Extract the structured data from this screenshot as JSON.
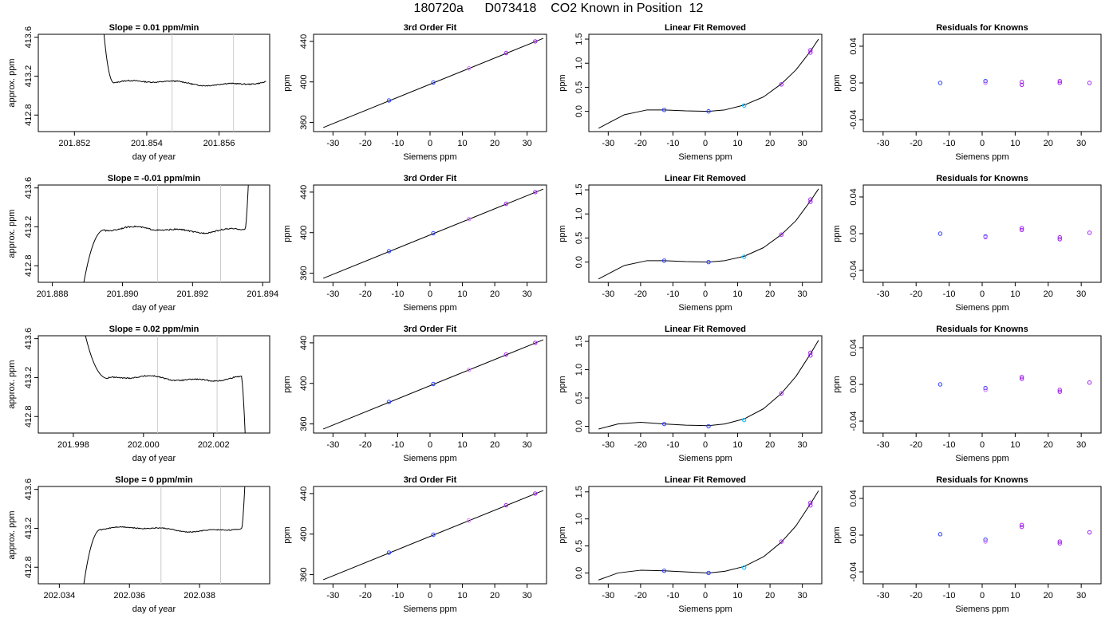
{
  "page": {
    "title": "180720a      D073418    CO2 Known in Position  12"
  },
  "colors": {
    "axis": "#000000",
    "marker": "#cccccc",
    "point_blue": "#2a3cff",
    "point_purple": "#a020f0",
    "point_cyan": "#00b7ff",
    "point_magenta": "#d77aff",
    "line": "#000000"
  },
  "chart_data": [
    {
      "row": 1,
      "type": "line",
      "title": "Slope =  0.01  ppm/min",
      "xlabel": "day of year",
      "ylabel": "approx. ppm",
      "xlim": [
        201.851,
        201.8574
      ],
      "ylim": [
        412.63,
        413.63
      ],
      "xticks": [
        201.852,
        201.854,
        201.856
      ],
      "xtick_labels": [
        "201.852",
        "201.854",
        "201.856"
      ],
      "yticks": [
        412.8,
        413.2,
        413.6
      ],
      "ytick_labels": [
        "412.8",
        "413.2",
        "413.6"
      ],
      "markers": [
        201.8547,
        201.8564
      ],
      "trace": {
        "start": 201.8528,
        "end": 201.8573,
        "plateau": 413.13,
        "rise_end": 201.8531,
        "drop_start": 201.8573,
        "drop_to": 412.63,
        "rise_from": 413.7,
        "wave_amp": 0.012
      }
    },
    {
      "row": 1,
      "type": "line_scatter",
      "title": "3rd Order Fit",
      "xlabel": "Siemens ppm",
      "ylabel": "ppm",
      "xlim": [
        -36,
        36
      ],
      "ylim": [
        351,
        447
      ],
      "xticks": [
        -30,
        -20,
        -10,
        0,
        10,
        20,
        30
      ],
      "xtick_labels": [
        "-30",
        "-20",
        "-10",
        "0",
        "10",
        "20",
        "30"
      ],
      "yticks": [
        360,
        400,
        440
      ],
      "ytick_labels": [
        "360",
        "400",
        "440"
      ],
      "line": {
        "x": [
          -33,
          35
        ],
        "y": [
          355,
          443
        ]
      },
      "points": [
        {
          "x": -12.7,
          "y": 381.7
        },
        {
          "x": 1.0,
          "y": 399.4
        },
        {
          "x": 12.0,
          "y": 413.4
        },
        {
          "x": 23.5,
          "y": 428.5
        },
        {
          "x": 32.5,
          "y": 440.0
        }
      ]
    },
    {
      "row": 1,
      "type": "line_scatter",
      "title": "Linear Fit Removed",
      "xlabel": "Siemens ppm",
      "ylabel": "ppm",
      "xlim": [
        -36,
        36
      ],
      "ylim": [
        -0.42,
        1.6
      ],
      "xticks": [
        -30,
        -20,
        -10,
        0,
        10,
        20,
        30
      ],
      "xtick_labels": [
        "-30",
        "-20",
        "-10",
        "0",
        "10",
        "20",
        "30"
      ],
      "yticks": [
        0.0,
        0.5,
        1.0,
        1.5
      ],
      "ytick_labels": [
        "0.0",
        "0.5",
        "1.0",
        "1.5"
      ],
      "curve": {
        "x": [
          -33,
          -25,
          -18,
          -12.7,
          -6,
          1,
          6,
          12,
          18,
          23.5,
          28,
          32.5,
          35
        ],
        "y": [
          -0.35,
          -0.07,
          0.03,
          0.03,
          0.01,
          0.0,
          0.03,
          0.13,
          0.3,
          0.57,
          0.86,
          1.25,
          1.5
        ]
      },
      "points": [
        {
          "x": -12.7,
          "y": 0.03
        },
        {
          "x": 1.0,
          "y": 0.0
        },
        {
          "x": 12.0,
          "y": 0.12
        },
        {
          "x": 23.5,
          "y": 0.56
        },
        {
          "x": 32.5,
          "y": 1.22
        },
        {
          "x": 32.5,
          "y": 1.27
        }
      ]
    },
    {
      "row": 1,
      "type": "scatter",
      "title": "Residuals for Knowns",
      "xlabel": "Siemens ppm",
      "ylabel": "ppm",
      "xlim": [
        -36,
        36
      ],
      "ylim": [
        -0.053,
        0.053
      ],
      "xticks": [
        -30,
        -20,
        -10,
        0,
        10,
        20,
        30
      ],
      "xtick_labels": [
        "-30",
        "-20",
        "-10",
        "0",
        "10",
        "20",
        "30"
      ],
      "yticks": [
        -0.04,
        0.0,
        0.04
      ],
      "ytick_labels": [
        "-0.04",
        "0.00",
        "0.04"
      ],
      "points": [
        {
          "x": -12.7,
          "y": 0.0
        },
        {
          "x": 1.0,
          "y": 0.002
        },
        {
          "x": 1.0,
          "y": 0.0
        },
        {
          "x": 12.0,
          "y": 0.001
        },
        {
          "x": 12.0,
          "y": -0.002
        },
        {
          "x": 23.5,
          "y": 0.002
        },
        {
          "x": 23.5,
          "y": 0.0
        },
        {
          "x": 32.5,
          "y": 0.0
        }
      ]
    },
    {
      "row": 2,
      "type": "line",
      "title": "Slope =  -0.01  ppm/min",
      "xlabel": "day of year",
      "ylabel": "approx. ppm",
      "xlim": [
        201.8876,
        201.8942
      ],
      "ylim": [
        412.63,
        413.63
      ],
      "xticks": [
        201.888,
        201.89,
        201.892,
        201.894
      ],
      "xtick_labels": [
        "201.888",
        "201.890",
        "201.892",
        "201.894"
      ],
      "yticks": [
        412.8,
        413.2,
        413.6
      ],
      "ytick_labels": [
        "412.8",
        "413.2",
        "413.6"
      ],
      "markers": [
        201.891,
        201.8928
      ],
      "trace": {
        "start": 201.8889,
        "end": 201.8936,
        "plateau": 413.17,
        "rise_end": 201.8895,
        "drop_start": 201.8935,
        "drop_to": 413.7,
        "rise_from": 412.63,
        "wave_amp": 0.014
      }
    },
    {
      "row": 2,
      "type": "line_scatter",
      "title": "3rd Order Fit",
      "xlabel": "Siemens ppm",
      "ylabel": "ppm",
      "xlim": [
        -36,
        36
      ],
      "ylim": [
        351,
        447
      ],
      "xticks": [
        -30,
        -20,
        -10,
        0,
        10,
        20,
        30
      ],
      "xtick_labels": [
        "-30",
        "-20",
        "-10",
        "0",
        "10",
        "20",
        "30"
      ],
      "yticks": [
        360,
        400,
        440
      ],
      "ytick_labels": [
        "360",
        "400",
        "440"
      ],
      "line": {
        "x": [
          -33,
          35
        ],
        "y": [
          355,
          443
        ]
      },
      "points": [
        {
          "x": -12.7,
          "y": 381.7
        },
        {
          "x": 1.0,
          "y": 399.4
        },
        {
          "x": 12.0,
          "y": 413.4
        },
        {
          "x": 23.5,
          "y": 428.5
        },
        {
          "x": 32.5,
          "y": 440.0
        }
      ]
    },
    {
      "row": 2,
      "type": "line_scatter",
      "title": "Linear Fit Removed",
      "xlabel": "Siemens ppm",
      "ylabel": "ppm",
      "xlim": [
        -36,
        36
      ],
      "ylim": [
        -0.42,
        1.6
      ],
      "xticks": [
        -30,
        -20,
        -10,
        0,
        10,
        20,
        30
      ],
      "xtick_labels": [
        "-30",
        "-20",
        "-10",
        "0",
        "10",
        "20",
        "30"
      ],
      "yticks": [
        0.0,
        0.5,
        1.0,
        1.5
      ],
      "ytick_labels": [
        "0.0",
        "0.5",
        "1.0",
        "1.5"
      ],
      "curve": {
        "x": [
          -33,
          -25,
          -18,
          -12.7,
          -6,
          1,
          6,
          12,
          18,
          23.5,
          28,
          32.5,
          35
        ],
        "y": [
          -0.35,
          -0.07,
          0.03,
          0.03,
          0.01,
          0.0,
          0.03,
          0.12,
          0.3,
          0.57,
          0.86,
          1.27,
          1.52
        ]
      },
      "points": [
        {
          "x": -12.7,
          "y": 0.03
        },
        {
          "x": 1.0,
          "y": 0.0
        },
        {
          "x": 12.0,
          "y": 0.11
        },
        {
          "x": 23.5,
          "y": 0.57
        },
        {
          "x": 32.5,
          "y": 1.25
        },
        {
          "x": 32.5,
          "y": 1.3
        }
      ]
    },
    {
      "row": 2,
      "type": "scatter",
      "title": "Residuals for Knowns",
      "xlabel": "Siemens ppm",
      "ylabel": "ppm",
      "xlim": [
        -36,
        36
      ],
      "ylim": [
        -0.053,
        0.053
      ],
      "xticks": [
        -30,
        -20,
        -10,
        0,
        10,
        20,
        30
      ],
      "xtick_labels": [
        "-30",
        "-20",
        "-10",
        "0",
        "10",
        "20",
        "30"
      ],
      "yticks": [
        -0.04,
        0.0,
        0.04
      ],
      "ytick_labels": [
        "-0.04",
        "0.00",
        "0.04"
      ],
      "points": [
        {
          "x": -12.7,
          "y": 0.0
        },
        {
          "x": 1.0,
          "y": -0.003
        },
        {
          "x": 1.0,
          "y": -0.004
        },
        {
          "x": 12.0,
          "y": 0.006
        },
        {
          "x": 12.0,
          "y": 0.004
        },
        {
          "x": 23.5,
          "y": -0.004
        },
        {
          "x": 23.5,
          "y": -0.006
        },
        {
          "x": 32.5,
          "y": 0.001
        }
      ]
    },
    {
      "row": 3,
      "type": "line",
      "title": "Slope =  0.02  ppm/min",
      "xlabel": "day of year",
      "ylabel": "approx. ppm",
      "xlim": [
        201.997,
        202.0036
      ],
      "ylim": [
        412.63,
        413.63
      ],
      "xticks": [
        201.998,
        202.0,
        202.002
      ],
      "xtick_labels": [
        "201.998",
        "202.000",
        "202.002"
      ],
      "yticks": [
        412.8,
        413.2,
        413.6
      ],
      "ytick_labels": [
        "412.8",
        "413.2",
        "413.6"
      ],
      "markers": [
        202.0004,
        202.0021
      ],
      "trace": {
        "start": 201.9983,
        "end": 202.0029,
        "plateau": 413.19,
        "rise_end": 201.999,
        "drop_start": 202.0028,
        "drop_to": 412.63,
        "rise_from": 413.7,
        "wave_amp": 0.013
      }
    },
    {
      "row": 3,
      "type": "line_scatter",
      "title": "3rd Order Fit",
      "xlabel": "Siemens ppm",
      "ylabel": "ppm",
      "xlim": [
        -36,
        36
      ],
      "ylim": [
        351,
        447
      ],
      "xticks": [
        -30,
        -20,
        -10,
        0,
        10,
        20,
        30
      ],
      "xtick_labels": [
        "-30",
        "-20",
        "-10",
        "0",
        "10",
        "20",
        "30"
      ],
      "yticks": [
        360,
        400,
        440
      ],
      "ytick_labels": [
        "360",
        "400",
        "440"
      ],
      "line": {
        "x": [
          -33,
          35
        ],
        "y": [
          355,
          443
        ]
      },
      "points": [
        {
          "x": -12.7,
          "y": 381.7
        },
        {
          "x": 1.0,
          "y": 399.4
        },
        {
          "x": 12.0,
          "y": 413.4
        },
        {
          "x": 23.5,
          "y": 428.5
        },
        {
          "x": 32.5,
          "y": 440.0
        }
      ]
    },
    {
      "row": 3,
      "type": "line_scatter",
      "title": "Linear Fit Removed",
      "xlabel": "Siemens ppm",
      "ylabel": "ppm",
      "xlim": [
        -36,
        36
      ],
      "ylim": [
        -0.12,
        1.6
      ],
      "xticks": [
        -30,
        -20,
        -10,
        0,
        10,
        20,
        30
      ],
      "xtick_labels": [
        "-30",
        "-20",
        "-10",
        "0",
        "10",
        "20",
        "30"
      ],
      "yticks": [
        0.0,
        0.5,
        1.0,
        1.5
      ],
      "ytick_labels": [
        "0.0",
        "0.5",
        "1.0",
        "1.5"
      ],
      "curve": {
        "x": [
          -33,
          -27,
          -20,
          -12.7,
          -6,
          1,
          6,
          12,
          18,
          23.5,
          28,
          32.5,
          35
        ],
        "y": [
          -0.05,
          0.04,
          0.07,
          0.04,
          0.02,
          0.01,
          0.04,
          0.13,
          0.31,
          0.58,
          0.88,
          1.28,
          1.52
        ]
      },
      "points": [
        {
          "x": -12.7,
          "y": 0.04
        },
        {
          "x": 1.0,
          "y": 0.0
        },
        {
          "x": 12.0,
          "y": 0.11
        },
        {
          "x": 23.5,
          "y": 0.58
        },
        {
          "x": 32.5,
          "y": 1.25
        },
        {
          "x": 32.5,
          "y": 1.3
        }
      ]
    },
    {
      "row": 3,
      "type": "scatter",
      "title": "Residuals for Knowns",
      "xlabel": "Siemens ppm",
      "ylabel": "ppm",
      "xlim": [
        -36,
        36
      ],
      "ylim": [
        -0.053,
        0.053
      ],
      "xticks": [
        -30,
        -20,
        -10,
        0,
        10,
        20,
        30
      ],
      "xtick_labels": [
        "-30",
        "-20",
        "-10",
        "0",
        "10",
        "20",
        "30"
      ],
      "yticks": [
        -0.04,
        0.0,
        0.04
      ],
      "ytick_labels": [
        "-0.04",
        "0.00",
        "0.04"
      ],
      "points": [
        {
          "x": -12.7,
          "y": 0.0
        },
        {
          "x": 1.0,
          "y": -0.004
        },
        {
          "x": 1.0,
          "y": -0.006
        },
        {
          "x": 12.0,
          "y": 0.008
        },
        {
          "x": 12.0,
          "y": 0.006
        },
        {
          "x": 23.5,
          "y": -0.006
        },
        {
          "x": 23.5,
          "y": -0.008
        },
        {
          "x": 32.5,
          "y": 0.002
        }
      ]
    },
    {
      "row": 4,
      "type": "line",
      "title": "Slope =  0  ppm/min",
      "xlabel": "day of year",
      "ylabel": "approx. ppm",
      "xlim": [
        202.0334,
        202.04
      ],
      "ylim": [
        412.63,
        413.63
      ],
      "xticks": [
        202.034,
        202.036,
        202.038
      ],
      "xtick_labels": [
        "202.034",
        "202.036",
        "202.038"
      ],
      "yticks": [
        412.8,
        413.2,
        413.6
      ],
      "ytick_labels": [
        "412.8",
        "413.2",
        "413.6"
      ],
      "markers": [
        202.0369,
        202.0386
      ],
      "trace": {
        "start": 202.0347,
        "end": 202.0393,
        "plateau": 413.19,
        "rise_end": 202.0352,
        "drop_start": 202.0392,
        "drop_to": 413.7,
        "rise_from": 412.63,
        "wave_amp": 0.01
      }
    },
    {
      "row": 4,
      "type": "line_scatter",
      "title": "3rd Order Fit",
      "xlabel": "Siemens ppm",
      "ylabel": "ppm",
      "xlim": [
        -36,
        36
      ],
      "ylim": [
        351,
        447
      ],
      "xticks": [
        -30,
        -20,
        -10,
        0,
        10,
        20,
        30
      ],
      "xtick_labels": [
        "-30",
        "-20",
        "-10",
        "0",
        "10",
        "20",
        "30"
      ],
      "yticks": [
        360,
        400,
        440
      ],
      "ytick_labels": [
        "360",
        "400",
        "440"
      ],
      "line": {
        "x": [
          -33,
          35
        ],
        "y": [
          355,
          443
        ]
      },
      "points": [
        {
          "x": -12.7,
          "y": 381.7
        },
        {
          "x": 1.0,
          "y": 399.4
        },
        {
          "x": 12.0,
          "y": 413.4
        },
        {
          "x": 23.5,
          "y": 428.5
        },
        {
          "x": 32.5,
          "y": 440.0
        }
      ]
    },
    {
      "row": 4,
      "type": "line_scatter",
      "title": "Linear Fit Removed",
      "xlabel": "Siemens ppm",
      "ylabel": "ppm",
      "xlim": [
        -36,
        36
      ],
      "ylim": [
        -0.2,
        1.6
      ],
      "xticks": [
        -30,
        -20,
        -10,
        0,
        10,
        20,
        30
      ],
      "xtick_labels": [
        "-30",
        "-20",
        "-10",
        "0",
        "10",
        "20",
        "30"
      ],
      "yticks": [
        0.0,
        0.5,
        1.0,
        1.5
      ],
      "ytick_labels": [
        "0.0",
        "0.5",
        "1.0",
        "1.5"
      ],
      "curve": {
        "x": [
          -33,
          -27,
          -20,
          -12.7,
          -6,
          1,
          6,
          12,
          18,
          23.5,
          28,
          32.5,
          35
        ],
        "y": [
          -0.13,
          0.0,
          0.05,
          0.04,
          0.02,
          0.0,
          0.03,
          0.12,
          0.3,
          0.57,
          0.87,
          1.28,
          1.52
        ]
      },
      "points": [
        {
          "x": -12.7,
          "y": 0.04
        },
        {
          "x": 1.0,
          "y": 0.0
        },
        {
          "x": 12.0,
          "y": 0.1
        },
        {
          "x": 23.5,
          "y": 0.58
        },
        {
          "x": 32.5,
          "y": 1.25
        },
        {
          "x": 32.5,
          "y": 1.3
        }
      ]
    },
    {
      "row": 4,
      "type": "scatter",
      "title": "Residuals for Knowns",
      "xlabel": "Siemens ppm",
      "ylabel": "ppm",
      "xlim": [
        -36,
        36
      ],
      "ylim": [
        -0.053,
        0.053
      ],
      "xticks": [
        -30,
        -20,
        -10,
        0,
        10,
        20,
        30
      ],
      "xtick_labels": [
        "-30",
        "-20",
        "-10",
        "0",
        "10",
        "20",
        "30"
      ],
      "yticks": [
        -0.04,
        0.0,
        0.04
      ],
      "ytick_labels": [
        "-0.04",
        "0.00",
        "0.04"
      ],
      "points": [
        {
          "x": -12.7,
          "y": 0.001
        },
        {
          "x": 1.0,
          "y": -0.005
        },
        {
          "x": 1.0,
          "y": -0.007
        },
        {
          "x": 12.0,
          "y": 0.011
        },
        {
          "x": 12.0,
          "y": 0.009
        },
        {
          "x": 23.5,
          "y": -0.007
        },
        {
          "x": 23.5,
          "y": -0.009
        },
        {
          "x": 32.5,
          "y": 0.003
        }
      ]
    }
  ]
}
